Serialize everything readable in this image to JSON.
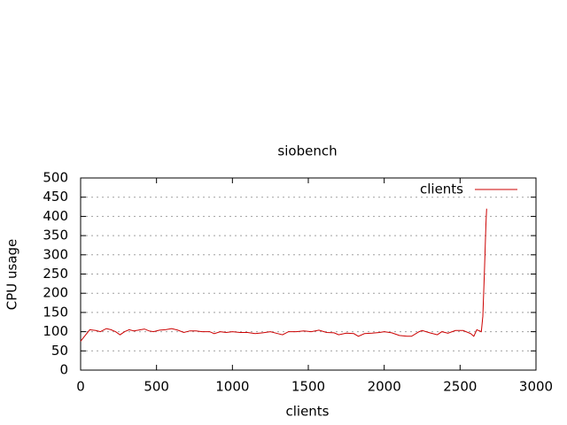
{
  "chart_data": {
    "type": "line",
    "title": "siobench",
    "xlabel": "clients",
    "ylabel": "CPU usage",
    "x": [
      0,
      30,
      60,
      100,
      130,
      170,
      200,
      230,
      260,
      290,
      320,
      350,
      380,
      420,
      450,
      480,
      520,
      560,
      600,
      640,
      680,
      720,
      760,
      800,
      850,
      880,
      920,
      960,
      1000,
      1050,
      1100,
      1150,
      1200,
      1250,
      1300,
      1330,
      1370,
      1420,
      1470,
      1520,
      1570,
      1620,
      1670,
      1700,
      1750,
      1800,
      1830,
      1870,
      1920,
      1970,
      2000,
      2050,
      2100,
      2150,
      2180,
      2230,
      2250,
      2300,
      2350,
      2380,
      2420,
      2470,
      2520,
      2570,
      2590,
      2610,
      2640,
      2650,
      2660,
      2670,
      2675
    ],
    "series": [
      {
        "name": "clients",
        "color": "#cc0000",
        "values": [
          75,
          90,
          105,
          103,
          100,
          108,
          105,
          100,
          92,
          100,
          105,
          102,
          104,
          107,
          102,
          100,
          104,
          105,
          108,
          104,
          98,
          102,
          102,
          100,
          100,
          95,
          100,
          98,
          100,
          98,
          98,
          95,
          97,
          100,
          95,
          92,
          100,
          100,
          102,
          100,
          104,
          98,
          97,
          92,
          96,
          95,
          88,
          95,
          96,
          98,
          100,
          97,
          90,
          88,
          88,
          100,
          103,
          97,
          92,
          100,
          96,
          103,
          103,
          95,
          88,
          105,
          100,
          140,
          250,
          380,
          420
        ]
      }
    ],
    "xlim": [
      0,
      3000
    ],
    "xticks": [
      0,
      500,
      1000,
      1500,
      2000,
      2500,
      3000
    ],
    "ylim": [
      0,
      500
    ],
    "yticks": [
      0,
      50,
      100,
      150,
      200,
      250,
      300,
      350,
      400,
      450,
      500
    ],
    "grid": true,
    "legend": "top-right"
  }
}
